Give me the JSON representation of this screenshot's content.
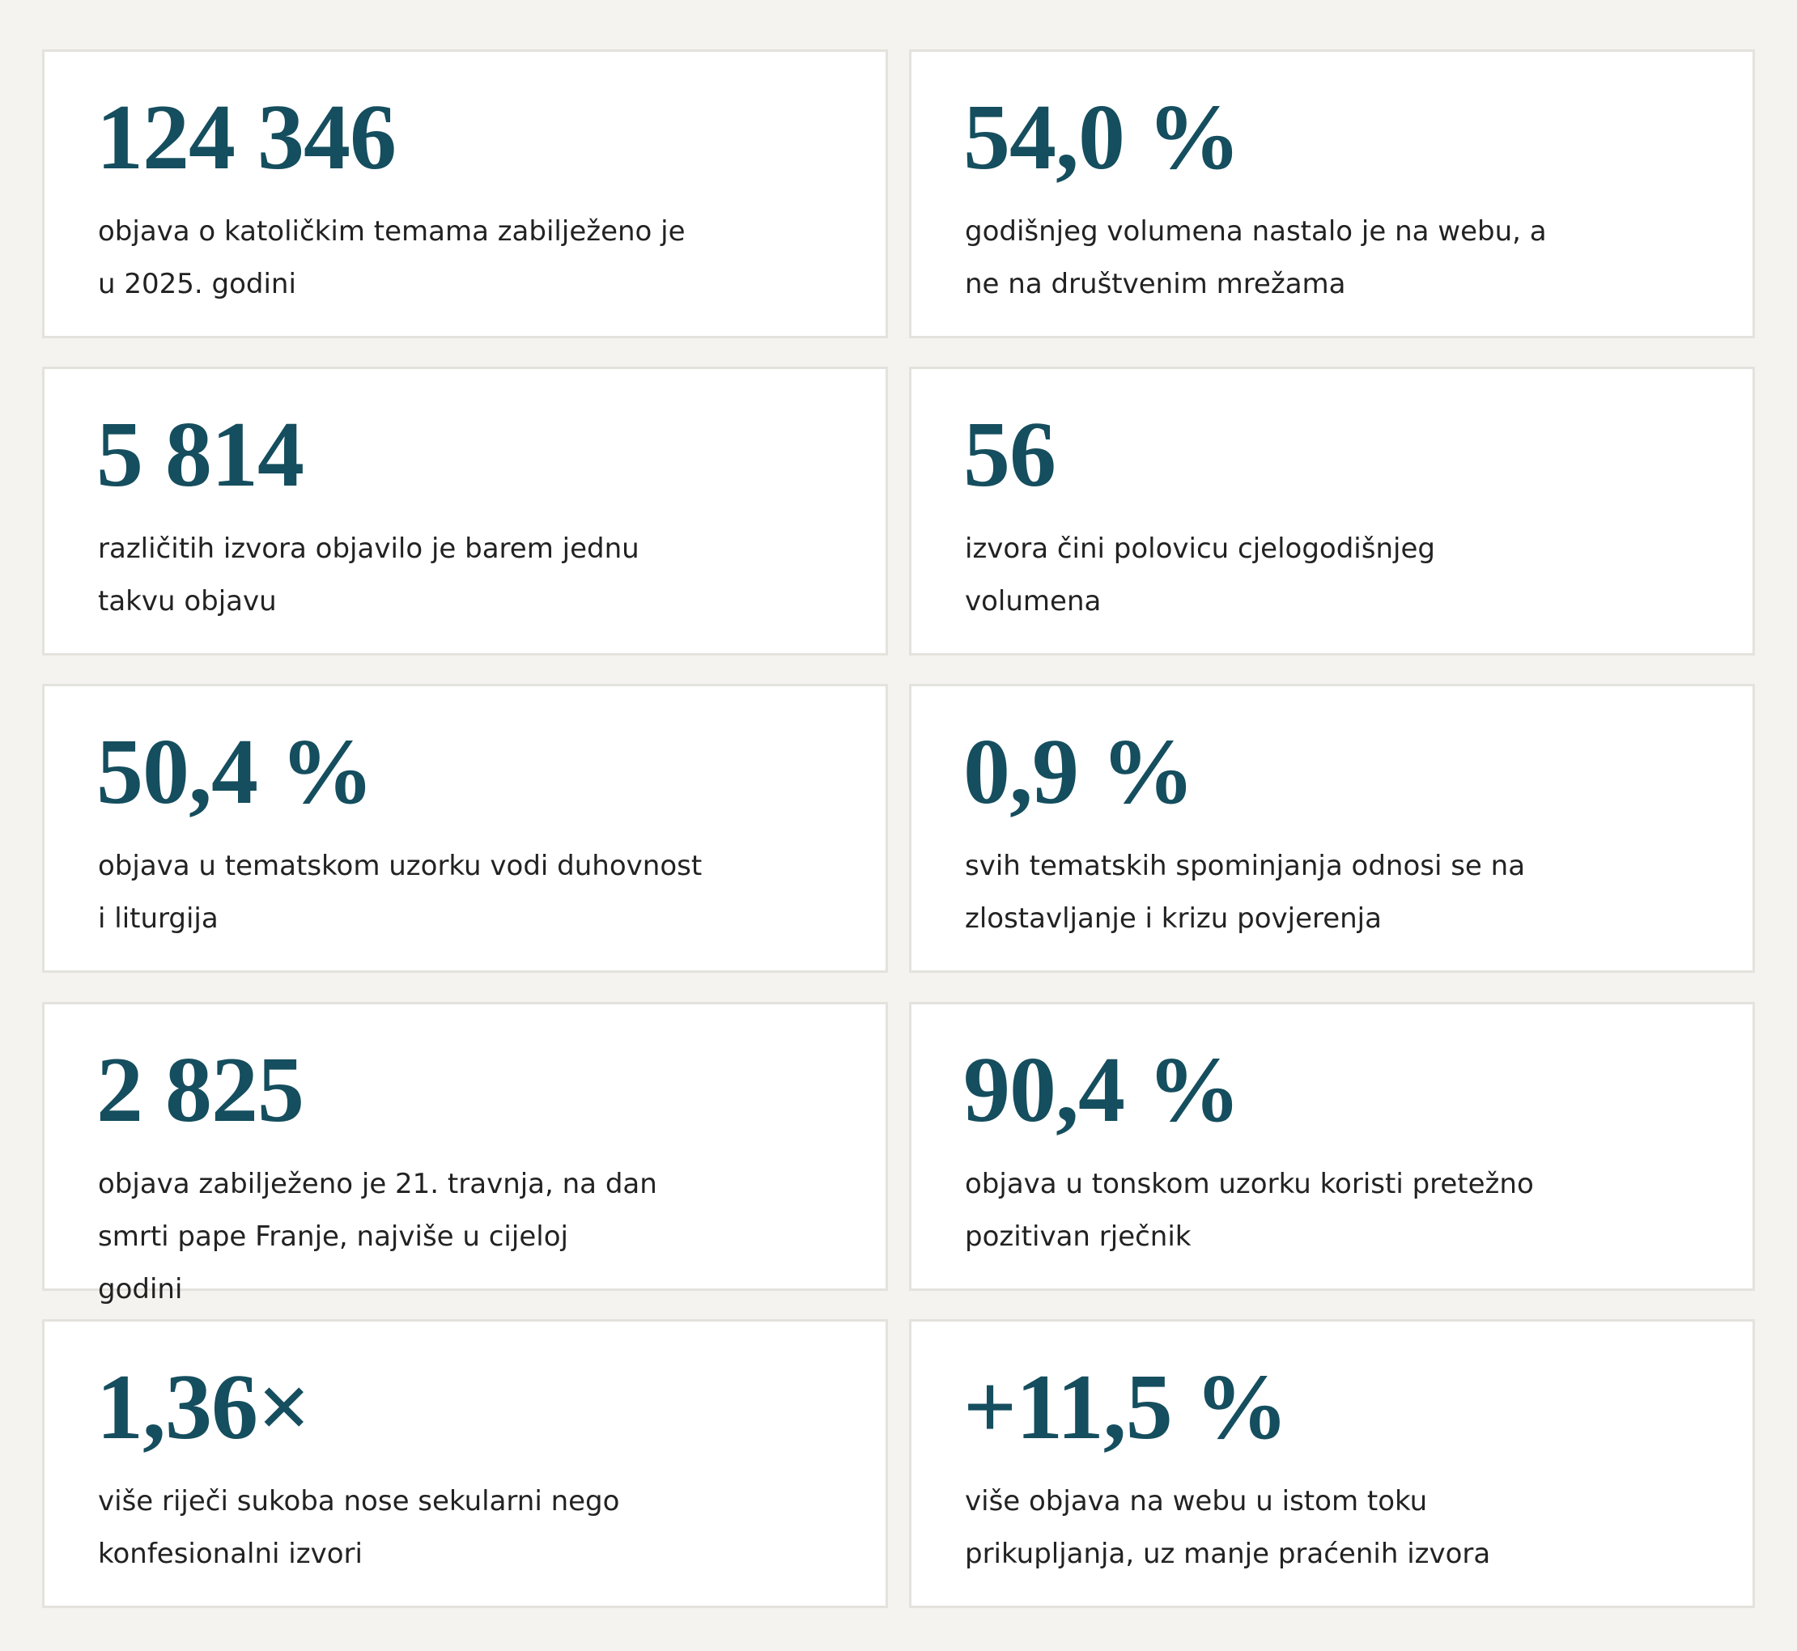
{
  "cards": [
    {
      "value": "124 346",
      "lines": [
        "objava o katoličkim temama zabilježeno je",
        "u 2025. godini"
      ]
    },
    {
      "value": "54,0 %",
      "lines": [
        "godišnjeg volumena nastalo je na webu, a",
        "ne na društvenim mrežama"
      ]
    },
    {
      "value": "5 814",
      "lines": [
        "različitih izvora objavilo je barem jednu",
        "takvu objavu"
      ]
    },
    {
      "value": "56",
      "lines": [
        "izvora čini polovicu cjelogodišnjeg",
        "volumena"
      ]
    },
    {
      "value": "50,4 %",
      "lines": [
        "objava u tematskom uzorku vodi duhovnost",
        "i liturgija"
      ]
    },
    {
      "value": "0,9 %",
      "lines": [
        "svih tematskih spominjanja odnosi se na",
        "zlostavljanje i krizu povjerenja"
      ]
    },
    {
      "value": "2 825",
      "lines": [
        "objava zabilježeno je 21. travnja, na dan",
        "smrti pape Franje, najviše u cijeloj",
        "godini"
      ]
    },
    {
      "value": "90,4 %",
      "lines": [
        "objava u tonskom uzorku koristi pretežno",
        "pozitivan rječnik"
      ]
    },
    {
      "value": "1,36×",
      "lines": [
        "više riječi sukoba nose sekularni nego",
        "konfesionalni izvori"
      ]
    },
    {
      "value": "+11,5 %",
      "lines": [
        "više objava na webu u istom toku",
        "prikupljanja, uz manje praćenih izvora"
      ]
    }
  ]
}
